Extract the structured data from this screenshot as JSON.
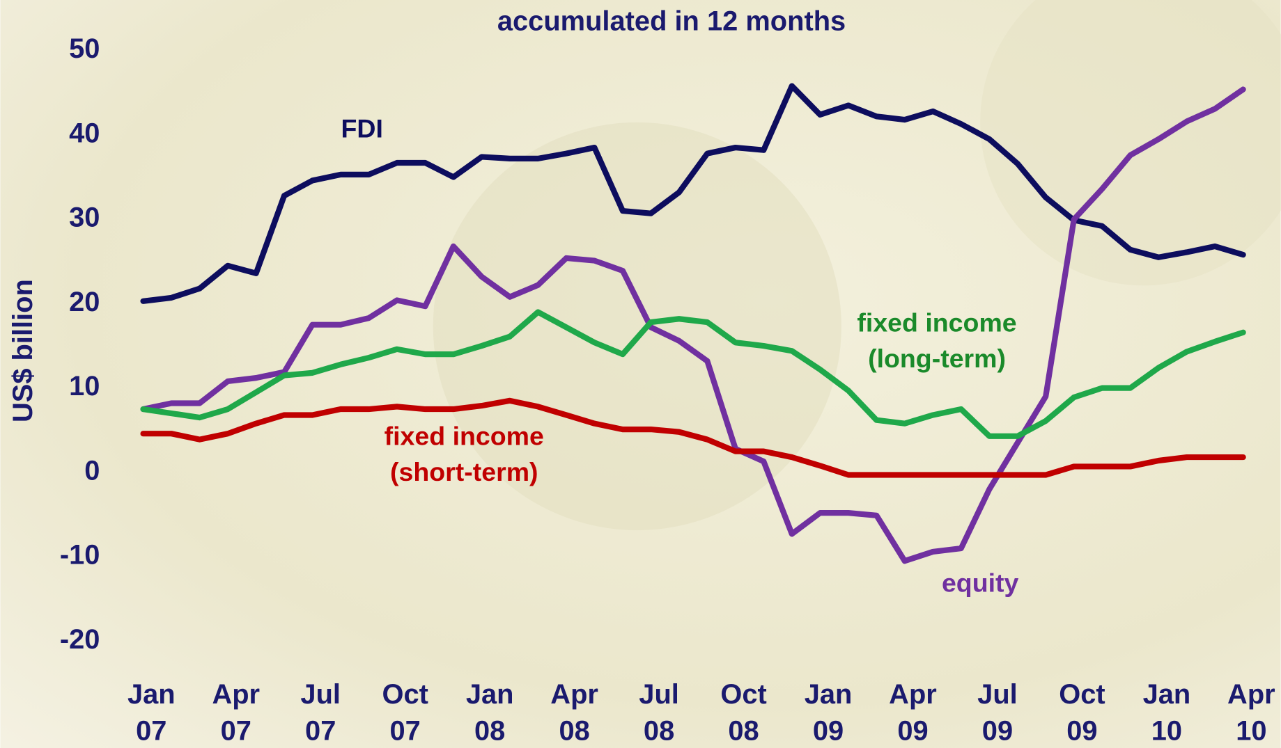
{
  "chart_data": {
    "type": "line",
    "title": "accumulated in 12 months",
    "ylabel": "US$ billion",
    "categories": [
      "Jan 07",
      null,
      null,
      "Apr 07",
      null,
      null,
      "Jul 07",
      null,
      null,
      "Oct 07",
      null,
      null,
      "Jan 08",
      null,
      null,
      "Apr 08",
      null,
      null,
      "Jul 08",
      null,
      null,
      "Oct 08",
      null,
      null,
      "Jan 09",
      null,
      null,
      "Apr 09",
      null,
      null,
      "Jul 09",
      null,
      null,
      "Oct 09",
      null,
      null,
      "Jan 10",
      null,
      null,
      "Apr 10"
    ],
    "series": [
      {
        "name": "FDI",
        "color": "#0d0d5e",
        "values": [
          20.3,
          20.7,
          21.8,
          24.5,
          23.6,
          32.8,
          34.6,
          35.3,
          35.3,
          36.7,
          36.7,
          35.0,
          37.4,
          37.2,
          37.2,
          37.8,
          38.5,
          31.0,
          30.7,
          33.2,
          37.8,
          38.5,
          38.2,
          45.8,
          42.4,
          43.5,
          42.2,
          41.8,
          42.8,
          41.3,
          39.5,
          36.6,
          32.6,
          29.9,
          29.2,
          26.4,
          25.5,
          26.1,
          26.8,
          25.8
        ]
      },
      {
        "name": "equity",
        "color": "#7030a0",
        "values": [
          7.5,
          8.2,
          8.2,
          10.8,
          11.2,
          11.9,
          17.5,
          17.5,
          18.3,
          20.4,
          19.7,
          26.8,
          23.2,
          20.8,
          22.2,
          25.4,
          25.1,
          23.9,
          17.2,
          15.6,
          13.2,
          2.8,
          1.3,
          -7.3,
          -4.8,
          -4.8,
          -5.1,
          -10.5,
          -9.4,
          -9.0,
          -2.0,
          3.5,
          9.0,
          30.0,
          33.6,
          37.6,
          39.5,
          41.6,
          43.1,
          45.4
        ]
      },
      {
        "name": "fixed income (long-term)",
        "color": "#1fa84a",
        "values": [
          7.5,
          7.0,
          6.5,
          7.5,
          9.5,
          11.5,
          11.8,
          12.8,
          13.6,
          14.6,
          14.0,
          14.0,
          15.0,
          16.1,
          19.0,
          17.2,
          15.4,
          14.0,
          17.8,
          18.2,
          17.8,
          15.4,
          15.0,
          14.4,
          12.2,
          9.7,
          6.2,
          5.8,
          6.8,
          7.5,
          4.3,
          4.3,
          6.1,
          8.9,
          10.0,
          10.0,
          12.4,
          14.3,
          15.5,
          16.6
        ]
      },
      {
        "name": "fixed income (short-term)",
        "color": "#c00000",
        "values": [
          4.6,
          4.6,
          3.9,
          4.6,
          5.8,
          6.8,
          6.8,
          7.5,
          7.5,
          7.8,
          7.5,
          7.5,
          7.9,
          8.5,
          7.8,
          6.8,
          5.8,
          5.1,
          5.1,
          4.8,
          3.9,
          2.5,
          2.5,
          1.8,
          0.8,
          -0.3,
          -0.3,
          -0.3,
          -0.3,
          -0.3,
          -0.3,
          -0.3,
          -0.3,
          0.7,
          0.7,
          0.7,
          1.4,
          1.8,
          1.8,
          1.8
        ]
      }
    ],
    "ylim": [
      -20,
      50
    ],
    "yticks": [
      -20,
      -10,
      0,
      10,
      20,
      30,
      40,
      50
    ]
  }
}
